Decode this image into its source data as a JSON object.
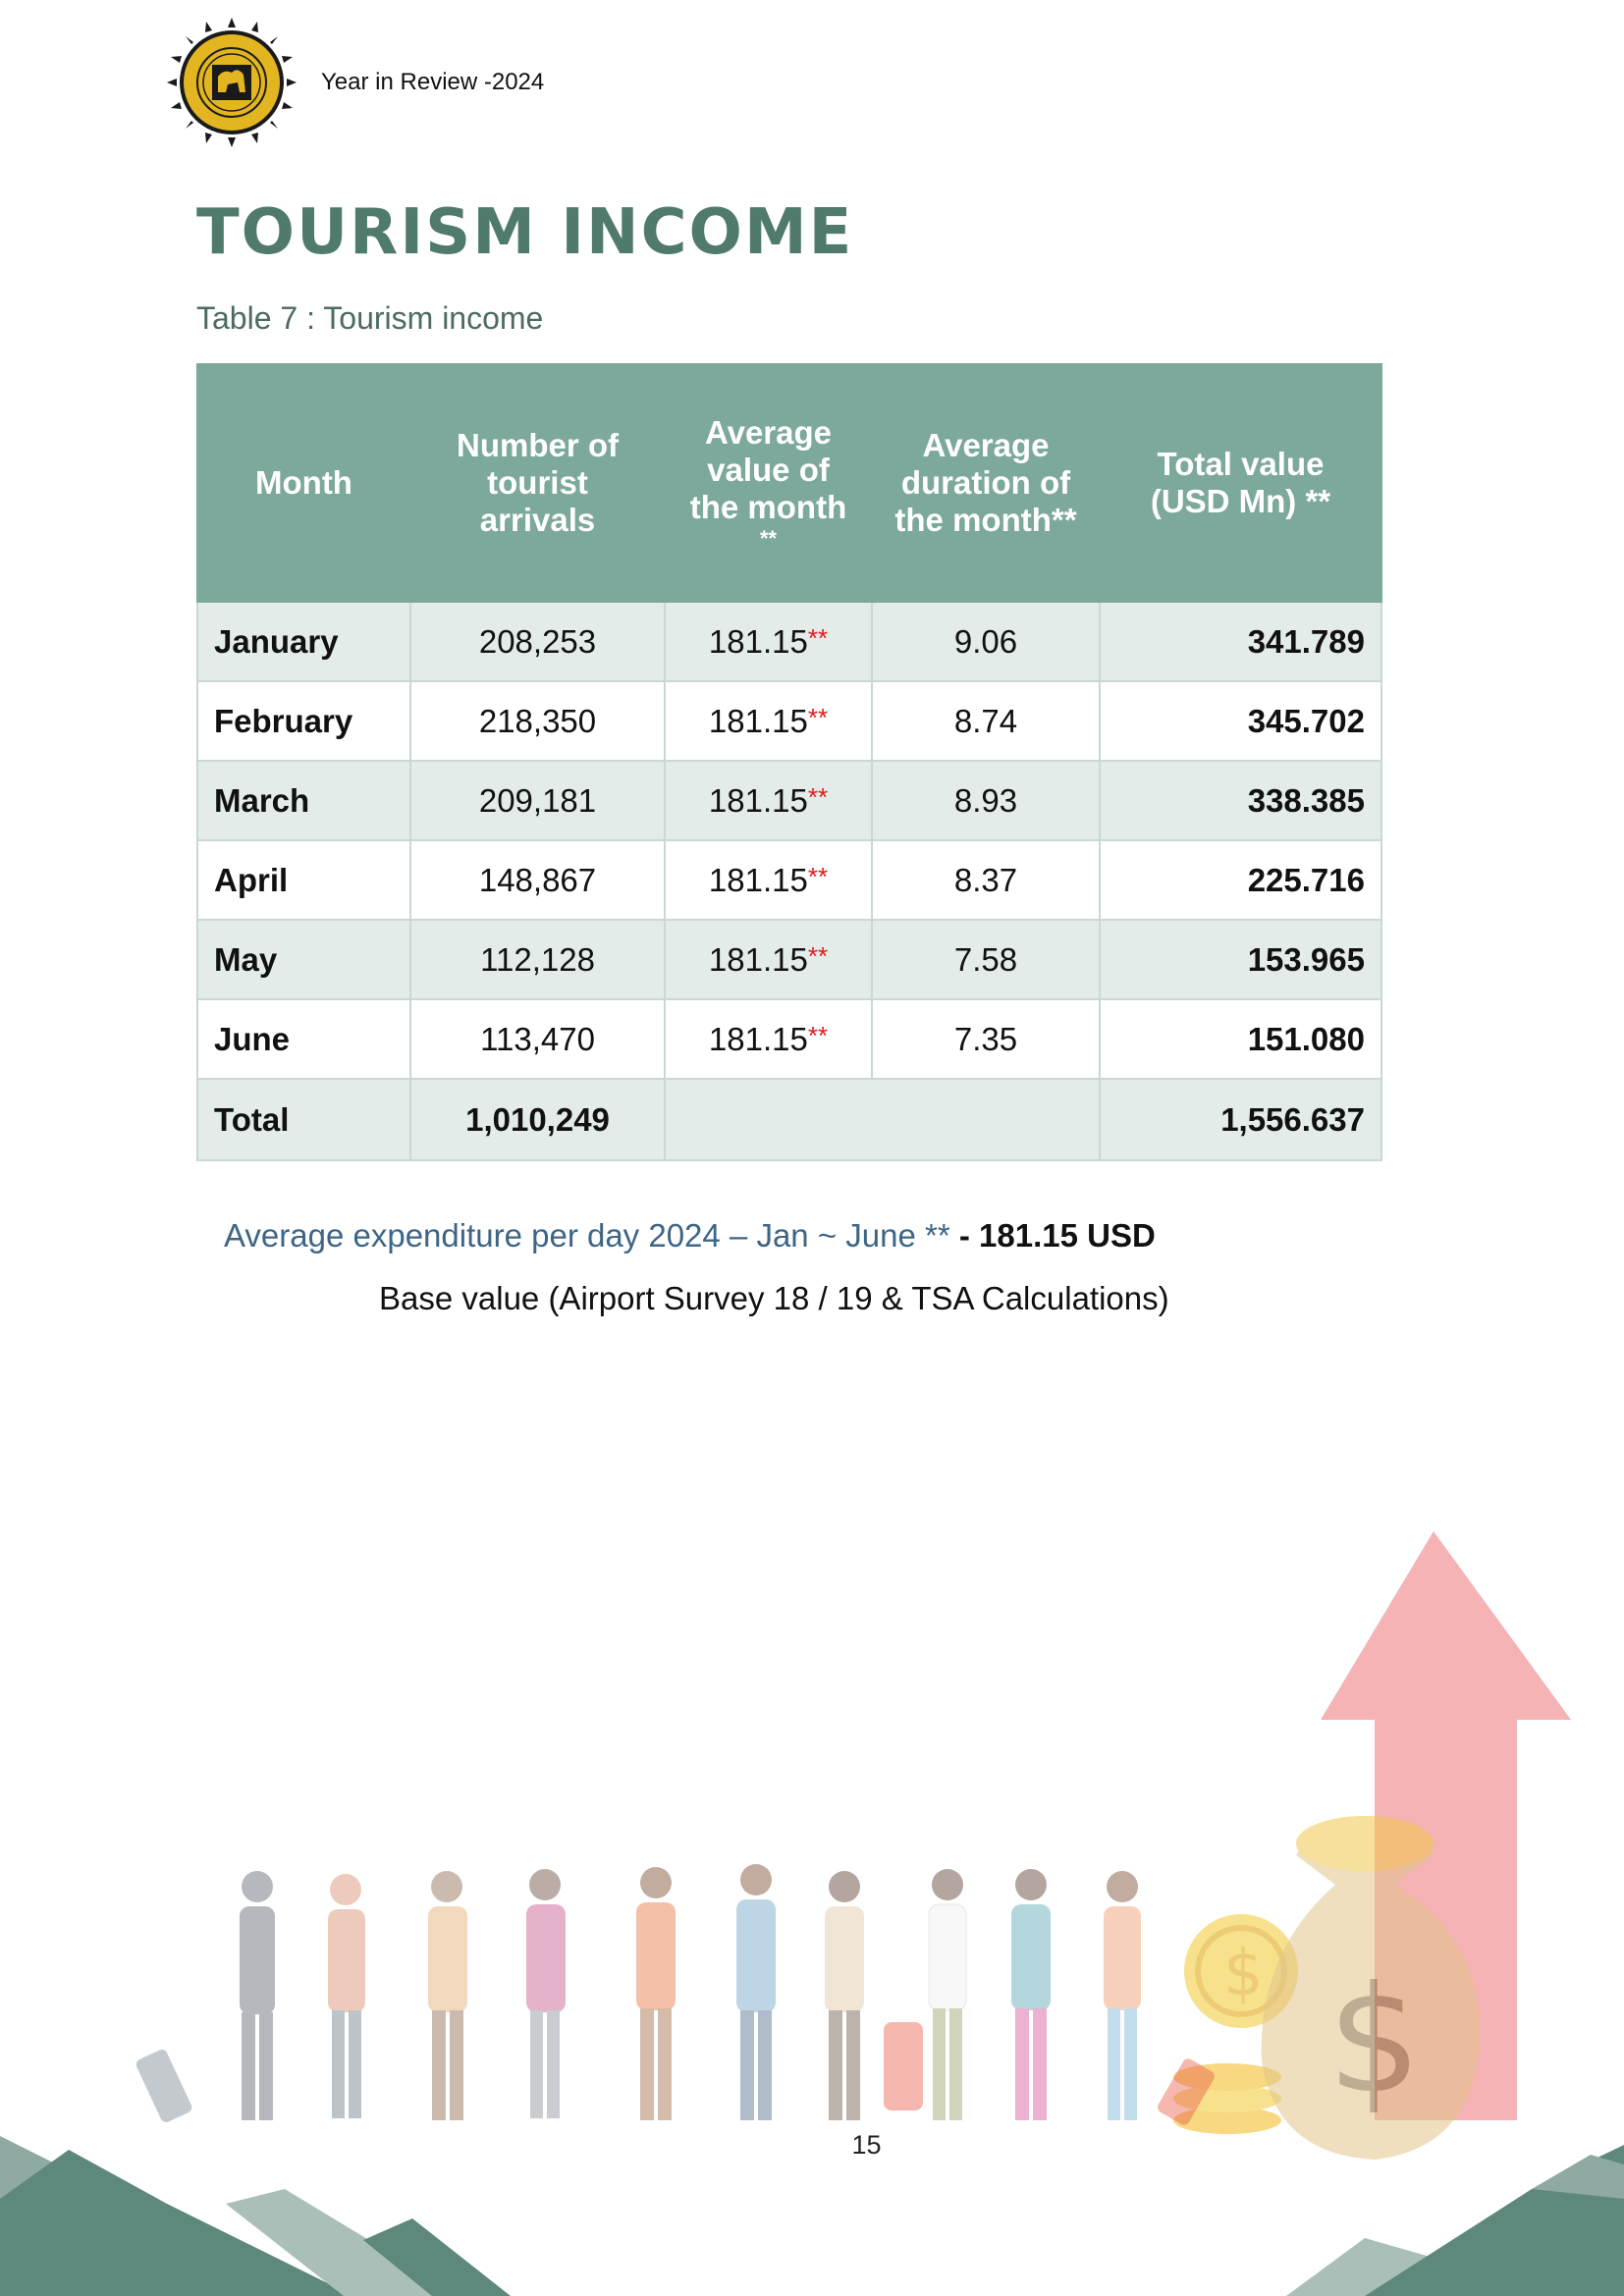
{
  "header": {
    "title": "Year in Review -2024"
  },
  "page": {
    "heading": "TOURISM INCOME",
    "caption": "Table 7 : Tourism income",
    "number": "15"
  },
  "table": {
    "headers": {
      "month": "Month",
      "arrivals": "Number of tourist arrivals",
      "avg_value": "Average value of the month",
      "avg_value_note": "**",
      "avg_duration": "Average duration of the month**",
      "total_value": "Total value (USD Mn) **"
    },
    "rows": [
      {
        "month": "January",
        "arrivals": "208,253",
        "avg_value": "181.15",
        "flag": "**",
        "duration": "9.06",
        "total": "341.789"
      },
      {
        "month": "February",
        "arrivals": "218,350",
        "avg_value": "181.15",
        "flag": "**",
        "duration": "8.74",
        "total": "345.702"
      },
      {
        "month": "March",
        "arrivals": "209,181",
        "avg_value": "181.15",
        "flag": "**",
        "duration": "8.93",
        "total": "338.385"
      },
      {
        "month": "April",
        "arrivals": "148,867",
        "avg_value": "181.15",
        "flag": "**",
        "duration": "8.37",
        "total": "225.716"
      },
      {
        "month": "May",
        "arrivals": "112,128",
        "avg_value": "181.15",
        "flag": "**",
        "duration": "7.58",
        "total": "153.965"
      },
      {
        "month": "June",
        "arrivals": "113,470",
        "avg_value": "181.15",
        "flag": "**",
        "duration": "7.35",
        "total": "151.080"
      }
    ],
    "totals": {
      "label": "Total",
      "arrivals": "1,010,249",
      "value": "1,556.637"
    }
  },
  "notes": {
    "expenditure_text": "Average expenditure per day 2024 – Jan ~ June ** ",
    "expenditure_value": "- 181.15 USD",
    "base_value": "Base value (Airport Survey 18 / 19 & TSA Calculations)"
  },
  "colors": {
    "title": "#4f7a6c",
    "table_header": "#7da89c",
    "row_shade": "#e4ecea",
    "flag": "#e01b1b",
    "note_blue": "#3e6585"
  },
  "icons": [
    "sri-lanka-tourism-emblem-icon",
    "travelers-illustration",
    "money-bag-icon",
    "up-arrow-icon"
  ]
}
